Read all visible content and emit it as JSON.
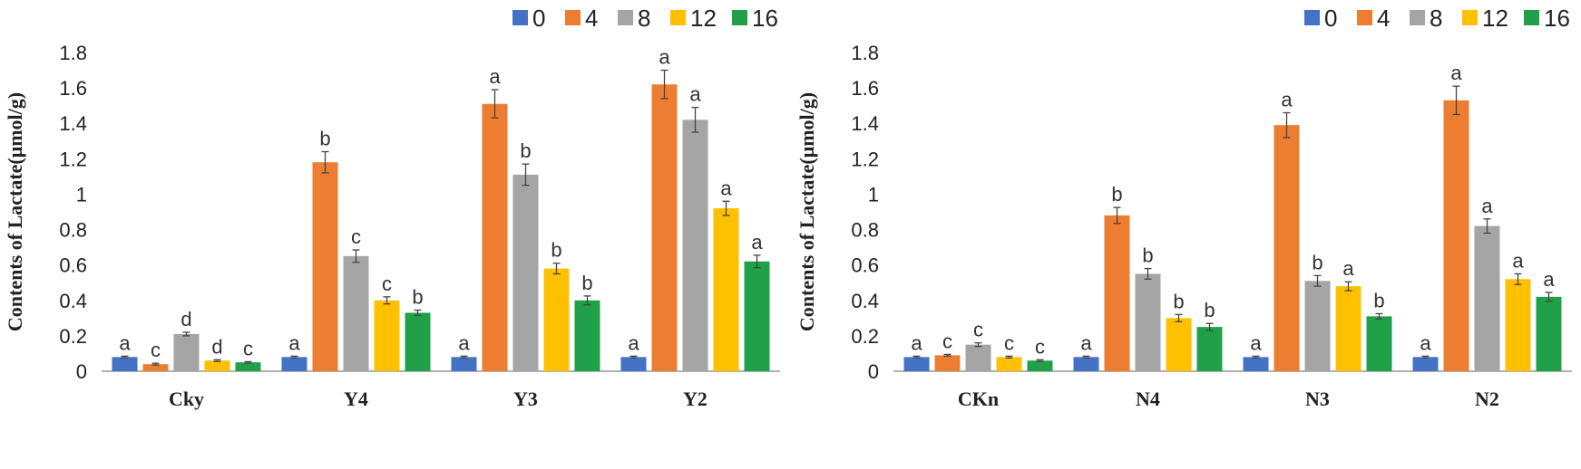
{
  "chart_data": [
    {
      "type": "bar",
      "ylabel": "Contents of Lactate(μmol/g)",
      "xlabel": "",
      "ylim": [
        0,
        1.8
      ],
      "yticks": [
        "0",
        "0.2",
        "0.4",
        "0.6",
        "0.8",
        "1",
        "1.2",
        "1.4",
        "1.6",
        "1.8"
      ],
      "legend_position": "top-right",
      "categories": [
        "Cky",
        "Y4",
        "Y3",
        "Y2"
      ],
      "series": [
        {
          "name": "0",
          "color": "#4472C4",
          "values": [
            0.08,
            0.08,
            0.08,
            0.08
          ],
          "errors": [
            0.005,
            0.005,
            0.005,
            0.005
          ],
          "letters": [
            "a",
            "a",
            "a",
            "a"
          ]
        },
        {
          "name": "4",
          "color": "#ED7D31",
          "values": [
            0.04,
            1.18,
            1.51,
            1.62
          ],
          "errors": [
            0.005,
            0.06,
            0.08,
            0.08
          ],
          "letters": [
            "c",
            "b",
            "a",
            "a"
          ]
        },
        {
          "name": "8",
          "color": "#A5A5A5",
          "values": [
            0.21,
            0.65,
            1.11,
            1.42
          ],
          "errors": [
            0.01,
            0.035,
            0.06,
            0.07
          ],
          "letters": [
            "d",
            "c",
            "b",
            "a"
          ]
        },
        {
          "name": "12",
          "color": "#FFC000",
          "values": [
            0.06,
            0.4,
            0.58,
            0.92
          ],
          "errors": [
            0.005,
            0.02,
            0.03,
            0.04
          ],
          "letters": [
            "d",
            "c",
            "b",
            "a"
          ]
        },
        {
          "name": "16",
          "color": "#1FA049",
          "values": [
            0.05,
            0.33,
            0.4,
            0.62
          ],
          "errors": [
            0.004,
            0.015,
            0.025,
            0.035
          ],
          "letters": [
            "c",
            "b",
            "b",
            "a"
          ]
        }
      ]
    },
    {
      "type": "bar",
      "ylabel": "Contents of Lactate(μmol/g)",
      "xlabel": "",
      "ylim": [
        0,
        1.8
      ],
      "yticks": [
        "0",
        "0.2",
        "0.4",
        "0.6",
        "0.8",
        "1",
        "1.2",
        "1.4",
        "1.6",
        "1.8"
      ],
      "legend_position": "top-right",
      "categories": [
        "CKn",
        "N4",
        "N3",
        "N2"
      ],
      "series": [
        {
          "name": "0",
          "color": "#4472C4",
          "values": [
            0.08,
            0.08,
            0.08,
            0.08
          ],
          "errors": [
            0.005,
            0.005,
            0.005,
            0.005
          ],
          "letters": [
            "a",
            "a",
            "a",
            "a"
          ]
        },
        {
          "name": "4",
          "color": "#ED7D31",
          "values": [
            0.09,
            0.88,
            1.39,
            1.53
          ],
          "errors": [
            0.005,
            0.045,
            0.07,
            0.08
          ],
          "letters": [
            "c",
            "b",
            "a",
            "a"
          ]
        },
        {
          "name": "8",
          "color": "#A5A5A5",
          "values": [
            0.15,
            0.55,
            0.51,
            0.82
          ],
          "errors": [
            0.01,
            0.03,
            0.03,
            0.04
          ],
          "letters": [
            "c",
            "b",
            "b",
            "a"
          ]
        },
        {
          "name": "12",
          "color": "#FFC000",
          "values": [
            0.08,
            0.3,
            0.48,
            0.52
          ],
          "errors": [
            0.005,
            0.02,
            0.025,
            0.03
          ],
          "letters": [
            "c",
            "b",
            "a",
            "a"
          ]
        },
        {
          "name": "16",
          "color": "#1FA049",
          "values": [
            0.06,
            0.25,
            0.31,
            0.42
          ],
          "errors": [
            0.005,
            0.02,
            0.015,
            0.025
          ],
          "letters": [
            "c",
            "b",
            "b",
            "a"
          ]
        }
      ]
    }
  ]
}
